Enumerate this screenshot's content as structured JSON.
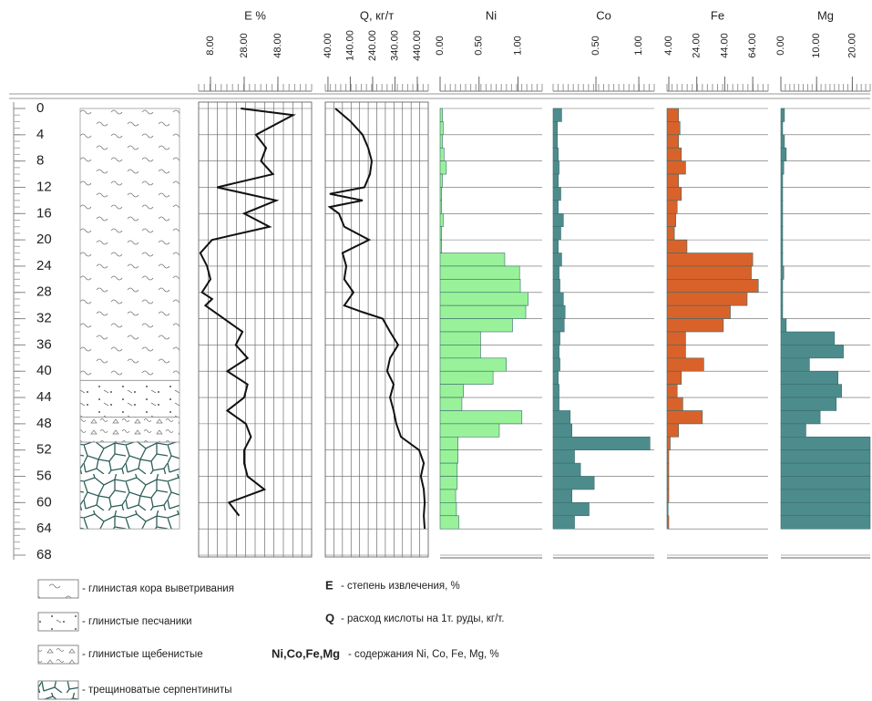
{
  "chart_data": {
    "type": "well_log",
    "depth": {
      "ylim": [
        0,
        68
      ],
      "yticks": [
        0,
        4,
        8,
        12,
        16,
        20,
        24,
        28,
        32,
        36,
        40,
        44,
        48,
        52,
        56,
        60,
        64,
        68
      ]
    },
    "tracks": [
      {
        "type": "line",
        "title": "E %",
        "color": "#111111",
        "xlim": [
          1,
          68
        ],
        "xticks": [
          {
            "value": 8,
            "label": "8.00"
          },
          {
            "value": 28,
            "label": "28.00"
          },
          {
            "value": 48,
            "label": "48.00"
          }
        ],
        "depths": [
          0,
          1,
          4,
          6,
          8,
          10,
          12,
          14,
          16,
          18,
          20,
          22,
          24,
          26,
          28,
          29,
          30,
          32,
          34,
          36,
          38,
          40,
          42,
          44,
          46,
          48,
          50,
          52,
          54,
          56,
          58,
          60,
          62
        ],
        "values": [
          26,
          57,
          35,
          41,
          38,
          45,
          12,
          47,
          28,
          43,
          9,
          2,
          6,
          8,
          3,
          9,
          5,
          16,
          27,
          23,
          30,
          18,
          30,
          28,
          18,
          29,
          32,
          28,
          28,
          30,
          40,
          19,
          25
        ]
      },
      {
        "type": "line",
        "title": "Q, кг/т",
        "color": "#111111",
        "xlim": [
          28,
          489
        ],
        "xticks": [
          {
            "value": 40,
            "label": "40.00"
          },
          {
            "value": 140,
            "label": "140.00"
          },
          {
            "value": 240,
            "label": "240.00"
          },
          {
            "value": 340,
            "label": "340.00"
          },
          {
            "value": 440,
            "label": "440.00"
          }
        ],
        "depths": [
          0,
          2,
          4,
          6,
          8,
          10,
          12,
          13,
          14,
          15,
          16,
          18,
          20,
          22,
          24,
          26,
          28,
          30,
          31,
          32,
          34,
          36,
          38,
          40,
          42,
          44,
          46,
          48,
          50,
          52,
          54,
          56,
          58,
          60,
          62,
          64
        ],
        "values": [
          73,
          142,
          195,
          220,
          236,
          228,
          203,
          48,
          195,
          48,
          89,
          113,
          224,
          105,
          122,
          113,
          154,
          113,
          195,
          285,
          318,
          354,
          318,
          305,
          334,
          318,
          334,
          346,
          367,
          448,
          469,
          456,
          469,
          473,
          469,
          473
        ]
      },
      {
        "type": "bar",
        "title": "Ni",
        "color": "#99f299",
        "xlim": [
          0,
          1.31
        ],
        "xticks": [
          {
            "value": 0,
            "label": "0.00"
          },
          {
            "value": 0.5,
            "label": "0.50"
          },
          {
            "value": 1,
            "label": "1.00"
          }
        ],
        "bins": [
          0,
          2,
          4,
          6,
          8,
          10,
          12,
          14,
          16,
          18,
          20,
          22,
          24,
          26,
          28,
          30,
          32,
          34,
          36,
          38,
          40,
          42,
          44,
          46,
          48,
          50,
          52,
          54,
          56,
          58,
          60,
          62,
          64
        ],
        "values": [
          0.03,
          0.04,
          0.03,
          0.05,
          0.08,
          0.03,
          0.02,
          0.02,
          0.04,
          0.02,
          0.02,
          0.83,
          1.02,
          1.03,
          1.13,
          1.1,
          0.93,
          0.52,
          0.52,
          0.85,
          0.68,
          0.3,
          0.28,
          1.05,
          0.76,
          0.23,
          0.23,
          0.22,
          0.22,
          0.2,
          0.21,
          0.24
        ]
      },
      {
        "type": "bar",
        "title": "Co",
        "color": "#4d8c8c",
        "xlim": [
          0,
          1.18
        ],
        "xticks": [
          {
            "value": 0.5,
            "label": "0.50"
          },
          {
            "value": 1,
            "label": "1.00"
          }
        ],
        "bins": [
          0,
          2,
          4,
          6,
          8,
          10,
          12,
          14,
          16,
          18,
          20,
          22,
          24,
          26,
          28,
          30,
          32,
          34,
          36,
          38,
          40,
          42,
          44,
          46,
          48,
          50,
          52,
          54,
          56,
          58,
          60,
          62,
          64
        ],
        "values": [
          0.1,
          0.05,
          0.05,
          0.06,
          0.07,
          0.06,
          0.09,
          0.06,
          0.12,
          0.09,
          0.06,
          0.1,
          0.07,
          0.08,
          0.12,
          0.14,
          0.13,
          0.08,
          0.07,
          0.08,
          0.06,
          0.07,
          0.07,
          0.2,
          0.22,
          1.13,
          0.25,
          0.32,
          0.48,
          0.22,
          0.42,
          0.25
        ]
      },
      {
        "type": "bar",
        "title": "Fe",
        "color": "#d9622b",
        "xlim": [
          2.7,
          75
        ],
        "xticks": [
          {
            "value": 4,
            "label": "4.00"
          },
          {
            "value": 24,
            "label": "24.00"
          },
          {
            "value": 44,
            "label": "44.00"
          },
          {
            "value": 64,
            "label": "64.00"
          }
        ],
        "bins": [
          0,
          2,
          4,
          6,
          8,
          10,
          12,
          14,
          16,
          18,
          20,
          22,
          24,
          26,
          28,
          30,
          32,
          34,
          36,
          38,
          40,
          42,
          44,
          46,
          48,
          50,
          52,
          54,
          56,
          58,
          60,
          62,
          64
        ],
        "values": [
          11,
          12,
          11,
          13,
          16,
          11,
          13,
          10,
          9,
          8,
          17,
          64,
          63,
          68,
          60,
          48,
          43,
          16,
          16,
          29,
          13,
          10,
          14,
          28,
          11,
          5,
          4,
          4,
          4,
          4,
          3.5,
          4
        ]
      },
      {
        "type": "bar",
        "title": "Mg",
        "color": "#4d8c8c",
        "xlim": [
          0,
          25
        ],
        "xticks": [
          {
            "value": 0,
            "label": "0.00"
          },
          {
            "value": 10,
            "label": "10.00"
          },
          {
            "value": 20,
            "label": "20.00"
          }
        ],
        "bins": [
          0,
          2,
          4,
          6,
          8,
          10,
          12,
          14,
          16,
          18,
          20,
          22,
          24,
          26,
          28,
          30,
          32,
          34,
          36,
          38,
          40,
          42,
          44,
          46,
          48,
          50,
          52,
          54,
          56,
          58,
          60,
          62,
          64
        ],
        "values": [
          1,
          0.5,
          1,
          1.5,
          0.8,
          0.5,
          0.5,
          0.5,
          0.5,
          0.5,
          0.5,
          0.5,
          0.8,
          0.5,
          0.5,
          0.5,
          1.5,
          15,
          17.5,
          8,
          16,
          17,
          15.5,
          11,
          7,
          25,
          25,
          25,
          25,
          25,
          25,
          25
        ]
      }
    ],
    "lithology": [
      {
        "label": "- глинистая кора выветривания",
        "intervals": [
          [
            0,
            41.4
          ]
        ]
      },
      {
        "label": "- глинистые песчаники",
        "intervals": [
          [
            41.4,
            47
          ]
        ]
      },
      {
        "label": "- глинистые щебенистые",
        "intervals": [
          [
            47,
            50.8
          ]
        ]
      },
      {
        "label": "- трещиноватые серпентиниты",
        "intervals": [
          [
            50.8,
            64
          ]
        ]
      }
    ],
    "notes": [
      {
        "symbol": "E",
        "text": "- степень извлечения, %"
      },
      {
        "symbol": "Q",
        "text": "- расход кислоты на 1т. руды, кг/т."
      },
      {
        "symbol": "Ni,Co,Fe,Mg",
        "text": "- содержания Ni, Co, Fe, Mg, %"
      }
    ]
  }
}
